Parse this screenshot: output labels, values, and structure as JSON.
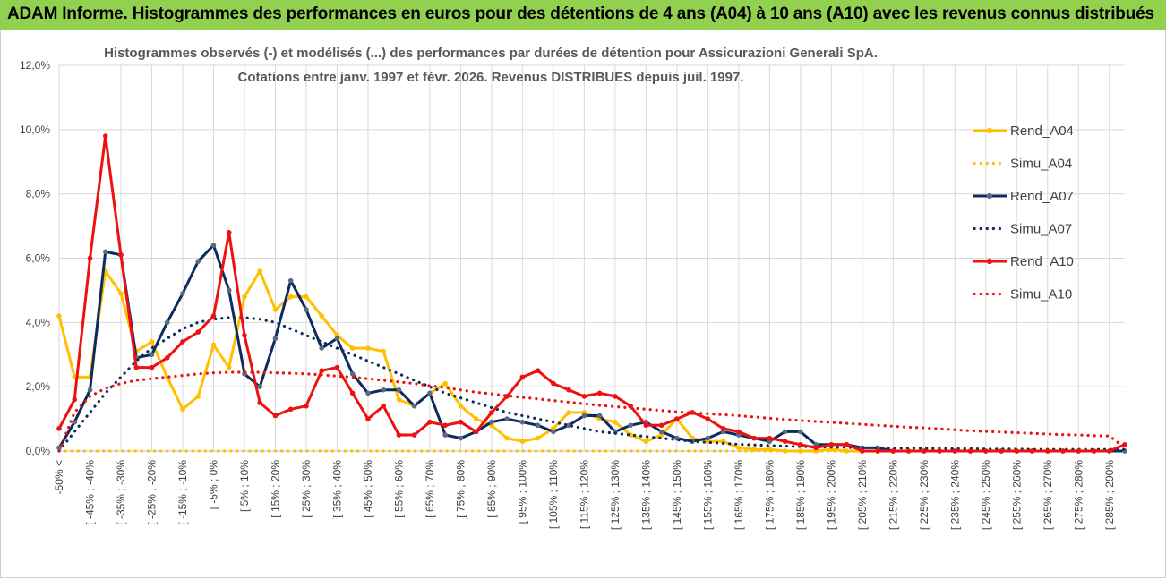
{
  "header": {
    "title": "ADAM Informe. Histogrammes des performances en euros pour des détentions de 4 ans (A04) à 10 ans (A10) avec les revenus connus distribués"
  },
  "chart_data": {
    "type": "line",
    "title_line1": "Histogrammes observés (-) et modélisés (...) des performances par durées de détention pour Assicurazioni Generali SpA.",
    "title_line2": "Cotations entre janv. 1997 et févr. 2026. Revenus DISTRIBUES depuis juil. 1997.",
    "ylim": [
      0,
      12
    ],
    "yticks": [
      "0,0%",
      "2,0%",
      "4,0%",
      "6,0%",
      "8,0%",
      "10,0%",
      "12,0%"
    ],
    "xlabels": [
      "-50% <",
      "[ -45% ; -40%",
      "[ -35% ; -30%",
      "[ -25% ; -20%",
      "[ -15% ; -10%",
      "[ -5% ; 0%",
      "[ 5% ; 10%",
      "[ 15% ; 20%",
      "[ 25% ; 30%",
      "[ 35% ; 40%",
      "[ 45% ; 50%",
      "[ 55% ; 60%",
      "[ 65% ; 70%",
      "[ 75% ; 80%",
      "[ 85% ; 90%",
      "[ 95% ; 100%",
      "[ 105% ; 110%",
      "[ 115% ; 120%",
      "[ 125% ; 130%",
      "[ 135% ; 140%",
      "[ 145% ; 150%",
      "[ 155% ; 160%",
      "[ 165% ; 170%",
      "[ 175% ; 180%",
      "[ 185% ; 190%",
      "[ 195% ; 200%",
      "[ 205% ; 210%",
      "[ 215% ; 220%",
      "[ 225% ; 230%",
      "[ 235% ; 240%",
      "[ 245% ; 250%",
      "[ 255% ; 260%",
      "[ 265% ; 270%",
      "[ 275% ; 280%",
      "[ 285% ; 290%"
    ],
    "series": [
      {
        "name": "Rend_A04",
        "color": "#ffc000",
        "style": "solid",
        "values": [
          4.2,
          2.3,
          2.3,
          5.6,
          4.9,
          3.1,
          3.4,
          2.3,
          1.3,
          1.7,
          3.3,
          2.6,
          4.8,
          5.6,
          4.4,
          4.8,
          4.8,
          4.2,
          3.6,
          3.2,
          3.2,
          3.1,
          1.6,
          1.4,
          1.8,
          2.1,
          1.4,
          1.0,
          0.8,
          0.4,
          0.3,
          0.4,
          0.7,
          1.2,
          1.2,
          1.0,
          0.9,
          0.5,
          0.3,
          0.5,
          1.0,
          0.4,
          0.3,
          0.3,
          0.1,
          0.05,
          0.05,
          0.0,
          0.0,
          0.0,
          0.05,
          0.0,
          0.0,
          0.0,
          0.0,
          0.0,
          0.0,
          0.0,
          0.0,
          0.0,
          0.0,
          0.0,
          0.0,
          0.0,
          0.0,
          0.0,
          0.0,
          0.0,
          0.0,
          0.0
        ]
      },
      {
        "name": "Simu_A04",
        "color": "#ffc000",
        "style": "dotted",
        "values": [
          0.0,
          0.0,
          0.0,
          0.0,
          0.0,
          0.0,
          0.0,
          0.0,
          0.0,
          0.0,
          0.0,
          0.0,
          0.0,
          0.0,
          0.0,
          0.0,
          0.0,
          0.0,
          0.0,
          0.0,
          0.0,
          0.0,
          0.0,
          0.0,
          0.0,
          0.0,
          0.0,
          0.0,
          0.0,
          0.0,
          0.0,
          0.0,
          0.0,
          0.0,
          0.0,
          0.0,
          0.0,
          0.0,
          0.0,
          0.0,
          0.0,
          0.0,
          0.0,
          0.0,
          0.0,
          0.0,
          0.0,
          0.0,
          0.0,
          0.0,
          0.0,
          0.0,
          0.0,
          0.0,
          0.0,
          0.0,
          0.0,
          0.0,
          0.0,
          0.0,
          0.0,
          0.0,
          0.0,
          0.0,
          0.0,
          0.0,
          0.0,
          0.0,
          0.0,
          0.0
        ]
      },
      {
        "name": "Rend_A07",
        "color": "#0d2b5e",
        "style": "solid",
        "values": [
          0.1,
          0.9,
          1.9,
          6.2,
          6.1,
          2.9,
          3.0,
          4.0,
          4.9,
          5.9,
          6.4,
          5.0,
          2.4,
          2.0,
          3.5,
          5.3,
          4.4,
          3.2,
          3.5,
          2.4,
          1.8,
          1.9,
          1.9,
          1.4,
          1.8,
          0.5,
          0.4,
          0.6,
          0.9,
          1.0,
          0.9,
          0.8,
          0.6,
          0.8,
          1.1,
          1.1,
          0.6,
          0.8,
          0.9,
          0.6,
          0.4,
          0.3,
          0.4,
          0.6,
          0.5,
          0.4,
          0.3,
          0.6,
          0.6,
          0.2,
          0.2,
          0.2,
          0.1,
          0.1,
          0.0,
          0.0,
          0.0,
          0.0,
          0.0,
          0.0,
          0.0,
          0.0,
          0.0,
          0.0,
          0.0,
          0.0,
          0.0,
          0.0,
          0.0,
          0.0
        ]
      },
      {
        "name": "Simu_A07",
        "color": "#0d2b5e",
        "style": "dotted",
        "values": [
          0.0,
          0.6,
          1.2,
          1.8,
          2.3,
          2.8,
          3.2,
          3.5,
          3.8,
          4.0,
          4.1,
          4.15,
          4.15,
          4.1,
          4.0,
          3.8,
          3.6,
          3.4,
          3.2,
          3.0,
          2.8,
          2.6,
          2.4,
          2.2,
          2.0,
          1.8,
          1.65,
          1.5,
          1.35,
          1.2,
          1.1,
          1.0,
          0.9,
          0.8,
          0.7,
          0.6,
          0.55,
          0.5,
          0.45,
          0.4,
          0.35,
          0.3,
          0.27,
          0.24,
          0.21,
          0.19,
          0.17,
          0.15,
          0.14,
          0.13,
          0.12,
          0.11,
          0.1,
          0.1,
          0.09,
          0.09,
          0.08,
          0.08,
          0.07,
          0.07,
          0.06,
          0.06,
          0.06,
          0.05,
          0.05,
          0.05,
          0.05,
          0.05,
          0.05,
          0.05
        ]
      },
      {
        "name": "Rend_A10",
        "color": "#ee1111",
        "style": "solid",
        "values": [
          0.7,
          1.6,
          6.0,
          9.8,
          6.1,
          2.6,
          2.6,
          2.9,
          3.4,
          3.7,
          4.2,
          6.8,
          3.6,
          1.5,
          1.1,
          1.3,
          1.4,
          2.5,
          2.6,
          1.8,
          1.0,
          1.4,
          0.5,
          0.5,
          0.9,
          0.8,
          0.9,
          0.6,
          1.2,
          1.7,
          2.3,
          2.5,
          2.1,
          1.9,
          1.7,
          1.8,
          1.7,
          1.4,
          0.8,
          0.8,
          1.0,
          1.2,
          1.0,
          0.7,
          0.6,
          0.4,
          0.4,
          0.3,
          0.2,
          0.1,
          0.2,
          0.2,
          0.0,
          0.0,
          0.0,
          0.0,
          0.0,
          0.0,
          0.0,
          0.0,
          0.0,
          0.0,
          0.0,
          0.0,
          0.0,
          0.0,
          0.0,
          0.0,
          0.0,
          0.2
        ]
      },
      {
        "name": "Simu_A10",
        "color": "#ee1111",
        "style": "dotted",
        "values": [
          0.0,
          1.2,
          1.7,
          1.95,
          2.1,
          2.2,
          2.25,
          2.3,
          2.35,
          2.4,
          2.43,
          2.45,
          2.45,
          2.45,
          2.43,
          2.42,
          2.4,
          2.37,
          2.33,
          2.3,
          2.25,
          2.2,
          2.15,
          2.1,
          2.03,
          1.97,
          1.9,
          1.83,
          1.78,
          1.72,
          1.67,
          1.62,
          1.57,
          1.52,
          1.47,
          1.42,
          1.38,
          1.34,
          1.3,
          1.26,
          1.22,
          1.19,
          1.16,
          1.13,
          1.1,
          1.06,
          1.02,
          0.98,
          0.95,
          0.92,
          0.89,
          0.86,
          0.83,
          0.8,
          0.77,
          0.74,
          0.72,
          0.69,
          0.66,
          0.63,
          0.61,
          0.59,
          0.57,
          0.55,
          0.53,
          0.51,
          0.5,
          0.48,
          0.47,
          0.1
        ]
      }
    ]
  },
  "legend": [
    {
      "label": "Rend_A04",
      "color": "#ffc000",
      "style": "solid"
    },
    {
      "label": "Simu_A04",
      "color": "#ffc000",
      "style": "dotted"
    },
    {
      "label": "Rend_A07",
      "color": "#0d2b5e",
      "style": "solid"
    },
    {
      "label": "Simu_A07",
      "color": "#0d2b5e",
      "style": "dotted"
    },
    {
      "label": "Rend_A10",
      "color": "#ee1111",
      "style": "solid"
    },
    {
      "label": "Simu_A10",
      "color": "#ee1111",
      "style": "dotted"
    }
  ]
}
